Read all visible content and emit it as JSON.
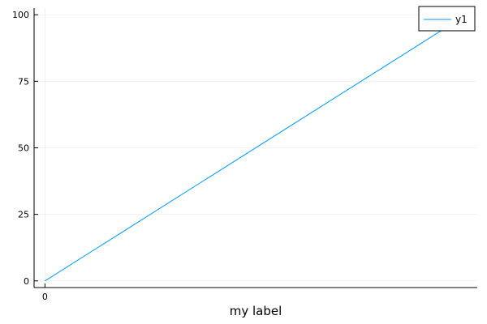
{
  "chart_data": {
    "type": "line",
    "title": "",
    "xlabel": "my label",
    "ylabel": "",
    "x_ticks": [
      0
    ],
    "y_ticks": [
      0,
      25,
      50,
      75,
      100
    ],
    "xlim": [
      -0.4,
      15.9
    ],
    "ylim": [
      -2.5,
      102.5
    ],
    "grid": true,
    "legend": "top-right",
    "series": [
      {
        "name": "y1",
        "color": "#009AF9",
        "x": [
          0,
          15.5
        ],
        "y": [
          0,
          100
        ]
      }
    ]
  }
}
